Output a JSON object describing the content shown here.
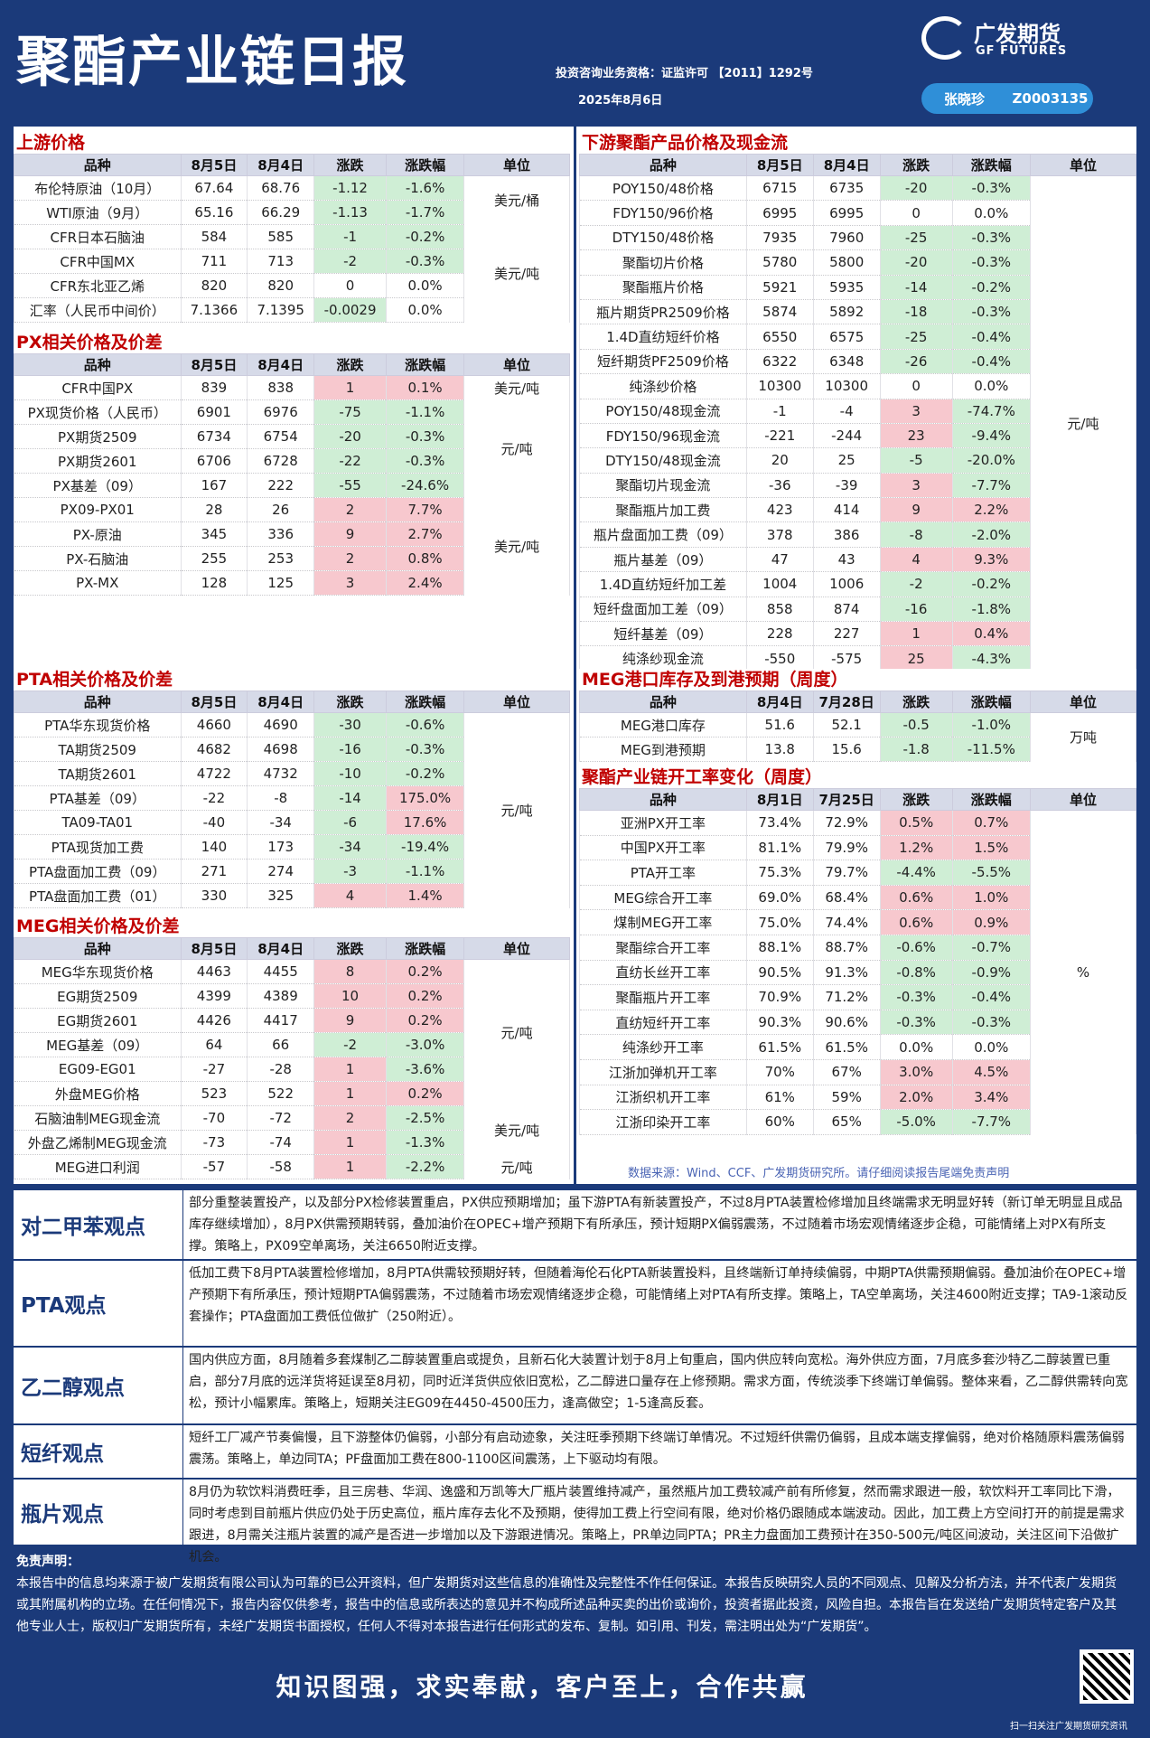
{
  "header": {
    "title": "聚酯产业链日报",
    "qualification": "投资咨询业务资格：证监许可 【2011】1292号",
    "date": "2025年8月6日",
    "logo_cn": "广发期货",
    "logo_en": "GF FUTURES",
    "analyst_name": "张晓珍",
    "analyst_id": "Z0003135"
  },
  "upstream": {
    "title": "上游价格",
    "headers": [
      "品种",
      "8月5日",
      "8月4日",
      "涨跌",
      "涨跌幅",
      "单位"
    ],
    "rows": [
      [
        "布伦特原油（10月）",
        "67.64",
        "68.76",
        "-1.12",
        "-1.6%"
      ],
      [
        "WTI原油（9月）",
        "65.16",
        "66.29",
        "-1.13",
        "-1.7%"
      ],
      [
        "CFR日本石脑油",
        "584",
        "585",
        "-1",
        "-0.2%"
      ],
      [
        "CFR中国MX",
        "711",
        "713",
        "-2",
        "-0.3%"
      ],
      [
        "CFR东北亚乙烯",
        "820",
        "820",
        "0",
        "0.0%"
      ],
      [
        "汇率（人民币中间价）",
        "7.1366",
        "7.1395",
        "-0.0029",
        "0.0%"
      ]
    ],
    "units": [
      "美元/桶",
      "美元/吨"
    ]
  },
  "px": {
    "title": "PX相关价格及价差",
    "headers": [
      "品种",
      "8月5日",
      "8月4日",
      "涨跌",
      "涨跌幅",
      "单位"
    ],
    "rows": [
      [
        "CFR中国PX",
        "839",
        "838",
        "1",
        "0.1%"
      ],
      [
        "PX现货价格（人民币）",
        "6901",
        "6976",
        "-75",
        "-1.1%"
      ],
      [
        "PX期货2509",
        "6734",
        "6754",
        "-20",
        "-0.3%"
      ],
      [
        "PX期货2601",
        "6706",
        "6728",
        "-22",
        "-0.3%"
      ],
      [
        "PX基差（09）",
        "167",
        "222",
        "-55",
        "-24.6%"
      ],
      [
        "PX09-PX01",
        "28",
        "26",
        "2",
        "7.7%"
      ],
      [
        "PX-原油",
        "345",
        "336",
        "9",
        "2.7%"
      ],
      [
        "PX-石脑油",
        "255",
        "253",
        "2",
        "0.8%"
      ],
      [
        "PX-MX",
        "128",
        "125",
        "3",
        "2.4%"
      ]
    ],
    "units": [
      "美元/吨",
      "元/吨",
      "美元/吨"
    ]
  },
  "pta": {
    "title": "PTA相关价格及价差",
    "headers": [
      "品种",
      "8月5日",
      "8月4日",
      "涨跌",
      "涨跌幅",
      "单位"
    ],
    "rows": [
      [
        "PTA华东现货价格",
        "4660",
        "4690",
        "-30",
        "-0.6%"
      ],
      [
        "TA期货2509",
        "4682",
        "4698",
        "-16",
        "-0.3%"
      ],
      [
        "TA期货2601",
        "4722",
        "4732",
        "-10",
        "-0.2%"
      ],
      [
        "PTA基差（09）",
        "-22",
        "-8",
        "-14",
        "175.0%"
      ],
      [
        "TA09-TA01",
        "-40",
        "-34",
        "-6",
        "17.6%"
      ],
      [
        "PTA现货加工费",
        "140",
        "173",
        "-34",
        "-19.4%"
      ],
      [
        "PTA盘面加工费（09）",
        "271",
        "274",
        "-3",
        "-1.1%"
      ],
      [
        "PTA盘面加工费（01）",
        "330",
        "325",
        "4",
        "1.4%"
      ]
    ],
    "units": [
      "元/吨"
    ]
  },
  "meg": {
    "title": "MEG相关价格及价差",
    "headers": [
      "品种",
      "8月5日",
      "8月4日",
      "涨跌",
      "涨跌幅",
      "单位"
    ],
    "rows": [
      [
        "MEG华东现货价格",
        "4463",
        "4455",
        "8",
        "0.2%"
      ],
      [
        "EG期货2509",
        "4399",
        "4389",
        "10",
        "0.2%"
      ],
      [
        "EG期货2601",
        "4426",
        "4417",
        "9",
        "0.2%"
      ],
      [
        "MEG基差（09）",
        "64",
        "66",
        "-2",
        "-3.0%"
      ],
      [
        "EG09-EG01",
        "-27",
        "-28",
        "1",
        "-3.6%"
      ],
      [
        "外盘MEG价格",
        "523",
        "522",
        "1",
        "0.2%"
      ],
      [
        "石脑油制MEG现金流",
        "-70",
        "-72",
        "2",
        "-2.5%"
      ],
      [
        "外盘乙烯制MEG现金流",
        "-73",
        "-74",
        "1",
        "-1.3%"
      ],
      [
        "MEG进口利润",
        "-57",
        "-58",
        "1",
        "-2.2%"
      ]
    ],
    "units": [
      "元/吨",
      "美元/吨",
      "元/吨"
    ]
  },
  "downstream": {
    "title": "下游聚酯产品价格及现金流",
    "headers": [
      "品种",
      "8月5日",
      "8月4日",
      "涨跌",
      "涨跌幅",
      "单位"
    ],
    "rows": [
      [
        "POY150/48价格",
        "6715",
        "6735",
        "-20",
        "-0.3%"
      ],
      [
        "FDY150/96价格",
        "6995",
        "6995",
        "0",
        "0.0%"
      ],
      [
        "DTY150/48价格",
        "7935",
        "7960",
        "-25",
        "-0.3%"
      ],
      [
        "聚酯切片价格",
        "5780",
        "5800",
        "-20",
        "-0.3%"
      ],
      [
        "聚酯瓶片价格",
        "5921",
        "5935",
        "-14",
        "-0.2%"
      ],
      [
        "瓶片期货PR2509价格",
        "5874",
        "5892",
        "-18",
        "-0.3%"
      ],
      [
        "1.4D直纺短纤价格",
        "6550",
        "6575",
        "-25",
        "-0.4%"
      ],
      [
        "短纤期货PF2509价格",
        "6322",
        "6348",
        "-26",
        "-0.4%"
      ],
      [
        "纯涤纱价格",
        "10300",
        "10300",
        "0",
        "0.0%"
      ],
      [
        "POY150/48现金流",
        "-1",
        "-4",
        "3",
        "-74.7%"
      ],
      [
        "FDY150/96现金流",
        "-221",
        "-244",
        "23",
        "-9.4%"
      ],
      [
        "DTY150/48现金流",
        "20",
        "25",
        "-5",
        "-20.0%"
      ],
      [
        "聚酯切片现金流",
        "-36",
        "-39",
        "3",
        "-7.7%"
      ],
      [
        "聚酯瓶片加工费",
        "423",
        "414",
        "9",
        "2.2%"
      ],
      [
        "瓶片盘面加工费（09）",
        "378",
        "386",
        "-8",
        "-2.0%"
      ],
      [
        "瓶片基差（09）",
        "47",
        "43",
        "4",
        "9.3%"
      ],
      [
        "1.4D直纺短纤加工差",
        "1004",
        "1006",
        "-2",
        "-0.2%"
      ],
      [
        "短纤盘面加工差（09）",
        "858",
        "874",
        "-16",
        "-1.8%"
      ],
      [
        "短纤基差（09）",
        "228",
        "227",
        "1",
        "0.4%"
      ],
      [
        "纯涤纱现金流",
        "-550",
        "-575",
        "25",
        "-4.3%"
      ]
    ],
    "units": [
      "元/吨"
    ]
  },
  "inventory": {
    "title": "MEG港口库存及到港预期（周度）",
    "headers": [
      "品种",
      "8月4日",
      "7月28日",
      "涨跌",
      "涨跌幅",
      "单位"
    ],
    "rows": [
      [
        "MEG港口库存",
        "51.6",
        "52.1",
        "-0.5",
        "-1.0%"
      ],
      [
        "MEG到港预期",
        "13.8",
        "15.6",
        "-1.8",
        "-11.5%"
      ]
    ],
    "units": [
      "万吨"
    ]
  },
  "oprate": {
    "title": "聚酯产业链开工率变化（周度）",
    "headers": [
      "品种",
      "8月1日",
      "7月25日",
      "涨跌",
      "涨跌幅",
      "单位"
    ],
    "rows": [
      [
        "亚洲PX开工率",
        "73.4%",
        "72.9%",
        "0.5%",
        "0.7%"
      ],
      [
        "中国PX开工率",
        "81.1%",
        "79.9%",
        "1.2%",
        "1.5%"
      ],
      [
        "PTA开工率",
        "75.3%",
        "79.7%",
        "-4.4%",
        "-5.5%"
      ],
      [
        "MEG综合开工率",
        "69.0%",
        "68.4%",
        "0.6%",
        "1.0%"
      ],
      [
        "煤制MEG开工率",
        "75.0%",
        "74.4%",
        "0.6%",
        "0.9%"
      ],
      [
        "聚酯综合开工率",
        "88.1%",
        "88.7%",
        "-0.6%",
        "-0.7%"
      ],
      [
        "直纺长丝开工率",
        "90.5%",
        "91.3%",
        "-0.8%",
        "-0.9%"
      ],
      [
        "聚酯瓶片开工率",
        "70.9%",
        "71.2%",
        "-0.3%",
        "-0.4%"
      ],
      [
        "直纺短纤开工率",
        "90.3%",
        "90.6%",
        "-0.3%",
        "-0.3%"
      ],
      [
        "纯涤纱开工率",
        "61.5%",
        "61.5%",
        "0.0%",
        "0.0%"
      ],
      [
        "江浙加弹机开工率",
        "70%",
        "67%",
        "3.0%",
        "4.5%"
      ],
      [
        "江浙织机开工率",
        "61%",
        "59%",
        "2.0%",
        "3.4%"
      ],
      [
        "江浙印染开工率",
        "60%",
        "65%",
        "-5.0%",
        "-7.7%"
      ]
    ],
    "units": [
      "%"
    ]
  },
  "source": "数据来源：Wind、CCF、广发期货研究所。请仔细阅读报告尾端免责声明",
  "views": [
    {
      "label": "对二甲苯观点",
      "text": "部分重整装置投产，以及部分PX检修装置重启，PX供应预期增加；虽下游PTA有新装置投产，不过8月PTA装置检修增加且终端需求无明显好转（新订单无明显且成品库存继续增加），8月PX供需预期转弱，叠加油价在OPEC+增产预期下有所承压，预计短期PX偏弱震荡，不过随着市场宏观情绪逐步企稳，可能情绪上对PX有所支撑。策略上，PX09空单离场，关注6650附近支撑。"
    },
    {
      "label": "PTA观点",
      "text": "低加工费下8月PTA装置检修增加，8月PTA供需较预期好转，但随着海伦石化PTA新装置投料，且终端新订单持续偏弱，中期PTA供需预期偏弱。叠加油价在OPEC+增产预期下有所承压，预计短期PTA偏弱震荡，不过随着市场宏观情绪逐步企稳，可能情绪上对PTA有所支撑。策略上，TA空单离场，关注4600附近支撑；TA9-1滚动反套操作；PTA盘面加工费低位做扩（250附近）。"
    },
    {
      "label": "乙二醇观点",
      "text": "国内供应方面，8月随着多套煤制乙二醇装置重启或提负，且新石化大装置计划于8月上旬重启，国内供应转向宽松。海外供应方面，7月底多套沙特乙二醇装置已重启，部分7月底的远洋货将延误至8月初，同时近洋货供应依旧宽松，乙二醇进口量存在上修预期。需求方面，传统淡季下终端订单偏弱。整体来看，乙二醇供需转向宽松，预计小幅累库。策略上，短期关注EG09在4450-4500压力，逢高做空；1-5逢高反套。"
    },
    {
      "label": "短纤观点",
      "text": "短纤工厂减产节奏偏慢，且下游整体仍偏弱，小部分有启动迹象，关注旺季预期下终端订单情况。不过短纤供需仍偏弱，且成本端支撑偏弱，绝对价格随原料震荡偏弱震荡。策略上，单边同TA；PF盘面加工费在800-1100区间震荡，上下驱动均有限。"
    },
    {
      "label": "瓶片观点",
      "text": "8月仍为软饮料消费旺季，且三房巷、华润、逸盛和万凯等大厂瓶片装置维持减产，虽然瓶片加工费较减产前有所修复，然而需求跟进一般，软饮料开工率同比下滑，同时考虑到目前瓶片供应仍处于历史高位，瓶片库存去化不及预期，使得加工费上行空间有限，绝对价格仍跟随成本端波动。因此，加工费上方空间打开的前提是需求跟进，8月需关注瓶片装置的减产是否进一步增加以及下游跟进情况。策略上，PR单边同PTA；PR主力盘面加工费预计在350-500元/吨区间波动，关注区间下沿做扩机会。"
    }
  ],
  "disclaimer": {
    "title": "免责声明：",
    "text": "本报告中的信息均来源于被广发期货有限公司认为可靠的已公开资料，但广发期货对这些信息的准确性及完整性不作任何保证。本报告反映研究人员的不同观点、见解及分析方法，并不代表广发期货或其附属机构的立场。在任何情况下，报告内容仅供参考，报告中的信息或所表达的意见并不构成所述品种买卖的出价或询价，投资者据此投资，风险自担。本报告旨在发送给广发期货特定客户及其他专业人士，版权归广发期货所有，未经广发期货书面授权，任何人不得对本报告进行任何形式的发布、复制。如引用、刊发，需注明出处为“广发期货”。"
  },
  "slogan": "知识图强，求实奉献，客户至上，合作共赢",
  "qr_caption": "扫一扫关注广发期货研究资讯",
  "colors": {
    "navy": "#1b3a7a",
    "green": "#cfeed5",
    "red": "#f7c8ce",
    "title_red": "#c00000"
  }
}
